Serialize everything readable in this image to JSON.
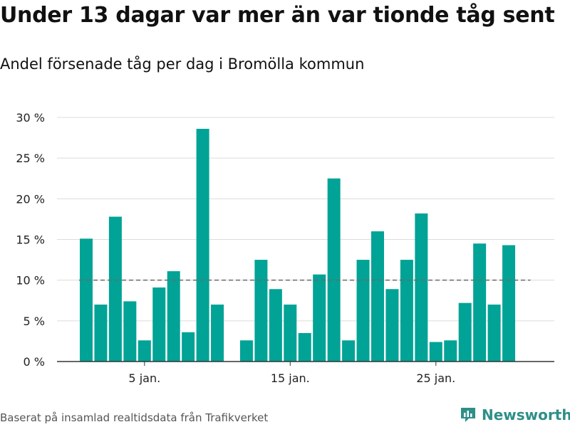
{
  "title": "Under 13 dagar var mer än var tionde tåg sent",
  "subtitle": "Andel försenade tåg per dag i Bromölla kommun",
  "footer": "Baserat på insamlad realtidsdata från Trafikverket",
  "brand": "Newsworthy",
  "colors": {
    "bar": "#00a396",
    "grid": "#dcdcdc",
    "reference": "#6b6b6b",
    "brand": "#2e8f88"
  },
  "chart_data": {
    "type": "bar",
    "x_start_day": 1,
    "x_end_day": 31,
    "values": [
      15.1,
      7.0,
      17.8,
      7.4,
      2.6,
      9.1,
      11.1,
      3.6,
      28.6,
      7.0,
      null,
      2.6,
      12.5,
      8.9,
      7.0,
      3.5,
      10.7,
      22.5,
      2.6,
      12.5,
      16.0,
      8.9,
      12.5,
      18.2,
      2.4,
      2.6,
      7.2,
      14.5,
      7.0,
      14.3
    ],
    "ylim": [
      0,
      30
    ],
    "y_ticks": [
      0,
      5,
      10,
      15,
      20,
      25,
      30
    ],
    "y_tick_labels": [
      "0 %",
      "5 %",
      "10 %",
      "15 %",
      "20 %",
      "25 %",
      "30 %"
    ],
    "x_ticks": [
      5,
      15,
      25
    ],
    "x_tick_labels": [
      "5 jan.",
      "15 jan.",
      "25 jan."
    ],
    "reference_line": 10,
    "grid": true
  }
}
